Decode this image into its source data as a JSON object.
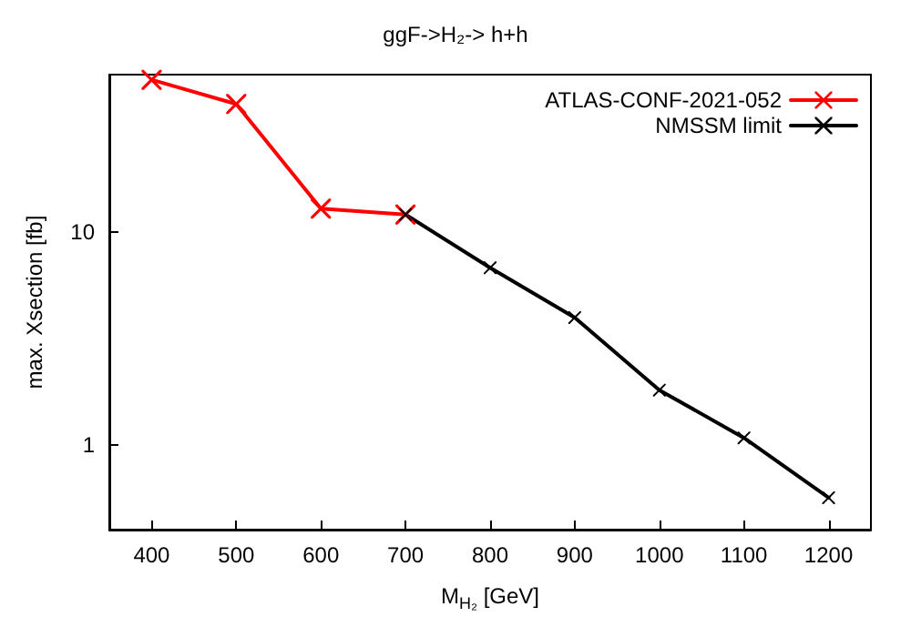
{
  "chart_data": {
    "type": "line",
    "title": "ggF->H₂-> h+h",
    "xlabel": "M$_{H₂}$ [GeV]",
    "ylabel": "max. Xsection [fb]",
    "xlim": [
      350,
      1250
    ],
    "xticks": [
      400,
      500,
      600,
      700,
      800,
      900,
      1000,
      1100,
      1200
    ],
    "ylim": [
      0.4,
      55
    ],
    "yticks": [
      1,
      10
    ],
    "log": "y",
    "grid": false,
    "legend": "top right",
    "marker": "cross",
    "line_style": "solid",
    "series": [
      {
        "name": "ATLAS-CONF-2021-052",
        "color": "#ff0000",
        "x": [
          400,
          500,
          600,
          700
        ],
        "values": [
          52,
          40,
          12.9,
          12.1
        ]
      },
      {
        "name": "NMSSM limit",
        "color": "#000000",
        "x": [
          700,
          800,
          900,
          1000,
          1100,
          1200
        ],
        "values": [
          12.1,
          6.8,
          3.97,
          1.81,
          1.08,
          0.565
        ]
      }
    ]
  }
}
